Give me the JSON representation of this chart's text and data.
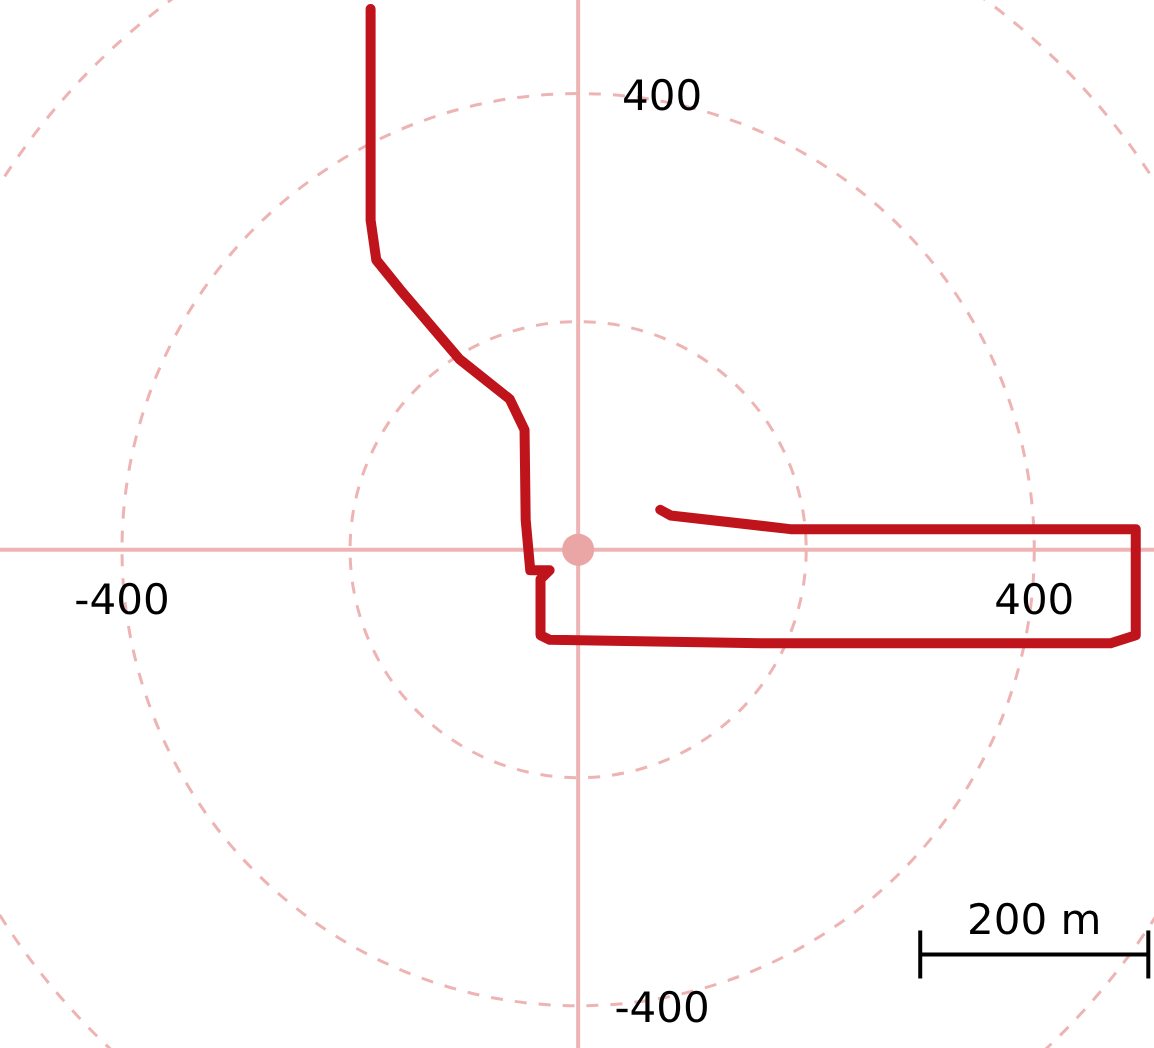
{
  "chart_data": {
    "type": "line",
    "xlim": [
      -507,
      505
    ],
    "ylim": [
      -437,
      482
    ],
    "xticks": [
      -400,
      400
    ],
    "yticks": [
      -400,
      400
    ],
    "line_style": "solid",
    "annotations": [
      "200 m"
    ],
    "series": [
      {
        "color": "#c0141c",
        "x": [
          -182,
          -182,
          -177,
          -156,
          -104,
          -60,
          -47,
          -46,
          -42,
          -25,
          -33,
          -33,
          -25,
          160,
          467,
          489,
          489,
          186,
          81,
          72
        ],
        "values": [
          474,
          289,
          254,
          228,
          167,
          132,
          105,
          26,
          -18,
          -18,
          -26,
          -75,
          -79,
          -82,
          -82,
          -75,
          18,
          18,
          30,
          35
        ]
      },
      {
        "type": "scatter",
        "color": "#eaa5a5",
        "marker": "circle",
        "x": [
          0
        ],
        "values": [
          0
        ]
      }
    ]
  }
}
